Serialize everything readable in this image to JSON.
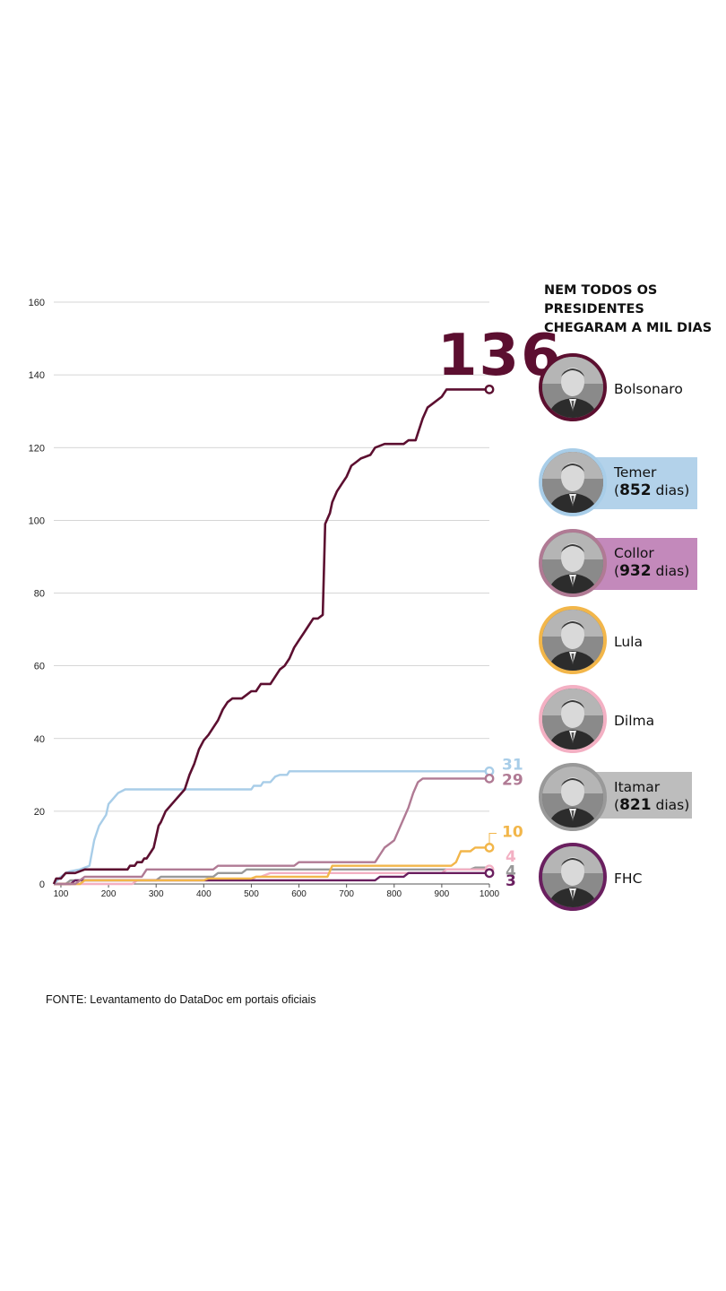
{
  "chart_data": {
    "type": "line",
    "title": "",
    "xlabel": "",
    "ylabel": "",
    "xlim": [
      85,
      1000
    ],
    "ylim": [
      0,
      160
    ],
    "yticks": [
      0,
      20,
      40,
      60,
      80,
      100,
      120,
      140,
      160
    ],
    "xticks": [
      100,
      200,
      300,
      400,
      500,
      600,
      700,
      800,
      900,
      1000
    ],
    "grid": true,
    "series": [
      {
        "name": "Bolsonaro",
        "color": "#5c0f30",
        "end_label": "136",
        "points": [
          [
            85,
            0
          ],
          [
            90,
            1.5
          ],
          [
            100,
            1.5
          ],
          [
            110,
            3
          ],
          [
            130,
            3
          ],
          [
            140,
            3.5
          ],
          [
            150,
            4
          ],
          [
            240,
            4
          ],
          [
            245,
            5
          ],
          [
            255,
            5
          ],
          [
            260,
            6
          ],
          [
            270,
            6
          ],
          [
            275,
            7
          ],
          [
            280,
            7
          ],
          [
            290,
            9
          ],
          [
            295,
            10
          ],
          [
            300,
            13
          ],
          [
            305,
            16
          ],
          [
            310,
            17
          ],
          [
            320,
            20
          ],
          [
            340,
            23
          ],
          [
            360,
            26
          ],
          [
            370,
            30
          ],
          [
            380,
            33
          ],
          [
            390,
            37
          ],
          [
            400,
            39.5
          ],
          [
            410,
            41
          ],
          [
            420,
            43
          ],
          [
            430,
            45
          ],
          [
            440,
            48
          ],
          [
            450,
            50
          ],
          [
            460,
            51
          ],
          [
            480,
            51
          ],
          [
            490,
            52
          ],
          [
            500,
            53
          ],
          [
            510,
            53
          ],
          [
            520,
            55
          ],
          [
            540,
            55
          ],
          [
            550,
            57
          ],
          [
            560,
            59
          ],
          [
            570,
            60
          ],
          [
            580,
            62
          ],
          [
            590,
            65
          ],
          [
            600,
            67
          ],
          [
            610,
            69
          ],
          [
            620,
            71
          ],
          [
            630,
            73
          ],
          [
            640,
            73
          ],
          [
            650,
            74
          ],
          [
            655,
            99
          ],
          [
            665,
            102
          ],
          [
            670,
            105
          ],
          [
            680,
            108
          ],
          [
            690,
            110
          ],
          [
            700,
            112
          ],
          [
            710,
            115
          ],
          [
            720,
            116
          ],
          [
            730,
            117
          ],
          [
            750,
            118
          ],
          [
            760,
            120
          ],
          [
            780,
            121
          ],
          [
            820,
            121
          ],
          [
            830,
            122
          ],
          [
            845,
            122
          ],
          [
            850,
            124
          ],
          [
            860,
            128
          ],
          [
            870,
            131
          ],
          [
            880,
            132
          ],
          [
            900,
            134
          ],
          [
            910,
            136
          ],
          [
            1000,
            136
          ]
        ]
      },
      {
        "name": "Temer",
        "color": "#a8cde8",
        "end_label": "31",
        "points": [
          [
            85,
            0
          ],
          [
            100,
            2
          ],
          [
            110,
            3
          ],
          [
            120,
            3.5
          ],
          [
            140,
            4
          ],
          [
            160,
            5
          ],
          [
            170,
            12
          ],
          [
            180,
            16
          ],
          [
            195,
            19
          ],
          [
            200,
            22
          ],
          [
            220,
            25
          ],
          [
            235,
            26
          ],
          [
            500,
            26
          ],
          [
            505,
            27
          ],
          [
            520,
            27
          ],
          [
            525,
            28
          ],
          [
            540,
            28
          ],
          [
            550,
            29.5
          ],
          [
            560,
            30
          ],
          [
            575,
            30
          ],
          [
            580,
            31
          ],
          [
            1000,
            31
          ]
        ]
      },
      {
        "name": "Collor",
        "color": "#b07a94",
        "end_label": "29",
        "points": [
          [
            85,
            0
          ],
          [
            130,
            0
          ],
          [
            140,
            1
          ],
          [
            150,
            2
          ],
          [
            270,
            2
          ],
          [
            280,
            4
          ],
          [
            420,
            4
          ],
          [
            430,
            5
          ],
          [
            590,
            5
          ],
          [
            600,
            6
          ],
          [
            760,
            6
          ],
          [
            770,
            8
          ],
          [
            780,
            10
          ],
          [
            790,
            11
          ],
          [
            800,
            12
          ],
          [
            810,
            15
          ],
          [
            820,
            18
          ],
          [
            830,
            21
          ],
          [
            840,
            25
          ],
          [
            850,
            28
          ],
          [
            860,
            29
          ],
          [
            1000,
            29
          ]
        ]
      },
      {
        "name": "Lula",
        "color": "#f2b64a",
        "end_label": "10",
        "points": [
          [
            85,
            0
          ],
          [
            140,
            0
          ],
          [
            150,
            1
          ],
          [
            400,
            1
          ],
          [
            410,
            1.5
          ],
          [
            500,
            1.5
          ],
          [
            510,
            2
          ],
          [
            660,
            2
          ],
          [
            670,
            5
          ],
          [
            920,
            5
          ],
          [
            930,
            6
          ],
          [
            940,
            9
          ],
          [
            960,
            9
          ],
          [
            970,
            10
          ],
          [
            1000,
            10
          ]
        ]
      },
      {
        "name": "Dilma",
        "color": "#f3b0c3",
        "end_label": "4",
        "points": [
          [
            85,
            0
          ],
          [
            250,
            0
          ],
          [
            260,
            1
          ],
          [
            500,
            1
          ],
          [
            510,
            2
          ],
          [
            520,
            2
          ],
          [
            540,
            3
          ],
          [
            900,
            3
          ],
          [
            910,
            4
          ],
          [
            1000,
            4
          ]
        ]
      },
      {
        "name": "Itamar",
        "color": "#999999",
        "end_label": "4",
        "points": [
          [
            85,
            0
          ],
          [
            110,
            0
          ],
          [
            120,
            1
          ],
          [
            300,
            1
          ],
          [
            310,
            2
          ],
          [
            420,
            2
          ],
          [
            430,
            3
          ],
          [
            480,
            3
          ],
          [
            490,
            4
          ],
          [
            960,
            4
          ],
          [
            970,
            4.5
          ],
          [
            1000,
            4.5
          ]
        ]
      },
      {
        "name": "FHC",
        "color": "#6a1f5f",
        "end_label": "3",
        "points": [
          [
            85,
            0
          ],
          [
            120,
            0
          ],
          [
            130,
            1
          ],
          [
            760,
            1
          ],
          [
            770,
            2
          ],
          [
            820,
            2
          ],
          [
            830,
            3
          ],
          [
            1000,
            3
          ]
        ]
      }
    ]
  },
  "panel": {
    "title": "NEM TODOS OS PRESIDENTES CHEGARAM A MIL DIAS",
    "presidents": [
      {
        "name": "Bolsonaro",
        "ring": "#5c0f30",
        "band": ""
      },
      {
        "name": "Temer",
        "days": "852",
        "unit": " dias)",
        "ring": "#a8cde8",
        "band": "#b3d2ea"
      },
      {
        "name": "Collor",
        "days": "932",
        "unit": " dias)",
        "ring": "#b07a94",
        "band": "#c389bb"
      },
      {
        "name": "Lula",
        "ring": "#f2b64a",
        "band": ""
      },
      {
        "name": "Dilma",
        "ring": "#f3b0c3",
        "band": ""
      },
      {
        "name": "Itamar",
        "days": "821",
        "unit": " dias)",
        "ring": "#999999",
        "band": "#bdbdbd"
      },
      {
        "name": "FHC",
        "ring": "#6a1f5f",
        "band": ""
      }
    ]
  },
  "source": "FONTE: Levantamento do DataDoc em portais oficiais"
}
